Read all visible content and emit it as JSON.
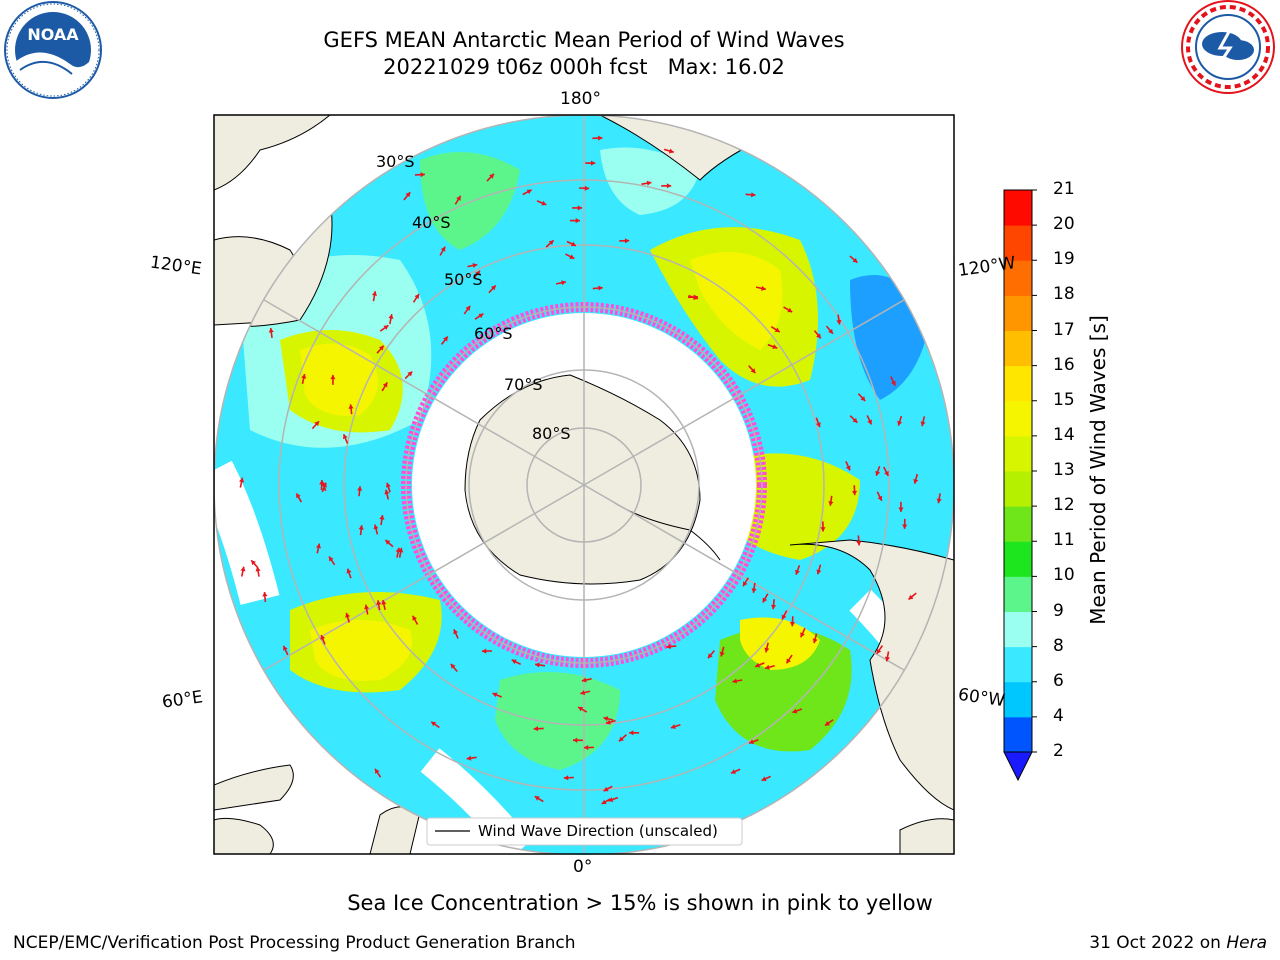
{
  "header": {
    "title_line1": "GEFS MEAN Antarctic Mean Period of Wind Waves",
    "title_line2": "20221029 t06z 000h fcst   Max: 16.02"
  },
  "logos": {
    "left": {
      "name": "NOAA",
      "ring_text": "NATIONAL OCEANIC AND ATMOSPHERIC ADMINISTRATION · U.S. DEPARTMENT OF COMMERCE",
      "color": "#1d5aa6"
    },
    "right": {
      "ring_text": "NATIONAL WEATHER SERVICE",
      "color": "#e3121b"
    }
  },
  "map": {
    "projection": "south-polar-stereographic",
    "longitude_labels": {
      "top": "180°",
      "bottom": "0°",
      "left_upper": "120°E",
      "left_lower": "60°E",
      "right_upper": "120°W",
      "right_lower": "60°W"
    },
    "latitude_labels": [
      "30°S",
      "40°S",
      "50°S",
      "60°S",
      "70°S",
      "80°S"
    ],
    "legend_label": "Wind Wave Direction (unscaled)",
    "colors": {
      "land": "#efeddf",
      "grid": "#b4b4b4",
      "arrow": "#e8141c",
      "sea_ice": "#ff4fd8"
    }
  },
  "colorbar": {
    "label": "Mean Period of Wind Waves [s]",
    "ticks": [
      "2",
      "4",
      "6",
      "8",
      "9",
      "10",
      "11",
      "12",
      "13",
      "14",
      "15",
      "16",
      "17",
      "18",
      "19",
      "20",
      "21"
    ],
    "colors": [
      "#0055ff",
      "#00c8ff",
      "#3ae8ff",
      "#9afff0",
      "#5cf58c",
      "#1ee61e",
      "#6ee61a",
      "#b4f000",
      "#d8f500",
      "#f5f500",
      "#ffe600",
      "#ffbe00",
      "#ff9600",
      "#ff6e00",
      "#ff4600",
      "#ff0a00"
    ],
    "extend_color": "#1a1aff"
  },
  "note": "Sea Ice Concentration > 15% is shown in pink to yellow",
  "footer": {
    "left": "NCEP/EMC/Verification Post Processing Product Generation Branch",
    "right_prefix": "31 Oct 2022 on ",
    "right_machine": "Hera"
  }
}
